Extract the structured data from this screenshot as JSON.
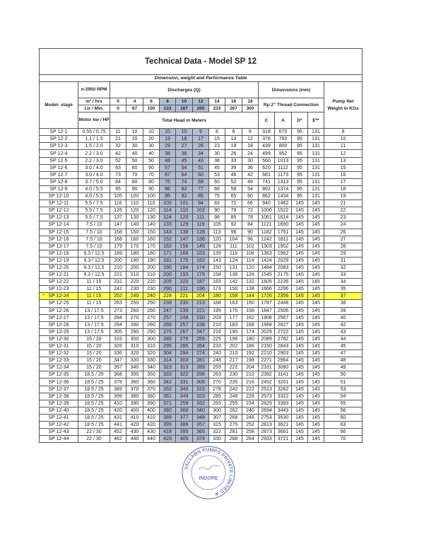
{
  "title": "Technical Data - Model SP 12",
  "subtitle": "Dimension, weight and Performance Table",
  "header": {
    "model_stage": "Model- stage",
    "rpm": "n-2950 RPM",
    "discharges": "Discharges (Q)",
    "dimensions": "Dimensions (mm)",
    "weight": "Pump Net Weight in KGs",
    "m3_label": "m³ / hrs",
    "m3_values": [
      "0",
      "4",
      "6",
      "8",
      "10",
      "12",
      "14",
      "16",
      "18"
    ],
    "ltr_label": "Ltr / Min.",
    "ltr_values": [
      "0",
      "67",
      "100",
      "133",
      "167",
      "200",
      "233",
      "267",
      "300"
    ],
    "thread": "Rp 2\" Thread Connection",
    "motor": "Motor kw / HP",
    "total_head": "Total Head in Meters",
    "dim_cols": [
      "C",
      "A",
      "D*",
      "E**"
    ]
  },
  "shaded_flow_columns": [
    "8",
    "10",
    "12"
  ],
  "colors": {
    "shade": "#b4bed3",
    "highlight": "#ffff3a"
  },
  "highlighted_row": "SP 12-24",
  "rows": [
    [
      "SP 12-1",
      "0.55 / 0.75",
      "11",
      "10",
      "10",
      "10",
      "10",
      "9",
      "8",
      "6",
      "6",
      "318",
      "670",
      "95",
      "131",
      "8"
    ],
    [
      "SP 12-2",
      "1.1 / 1.5",
      "21",
      "20",
      "20",
      "19",
      "18",
      "17",
      "15",
      "13",
      "12",
      "378",
      "760",
      "95",
      "131",
      "10"
    ],
    [
      "SP 12-3",
      "1.5 / 2.0",
      "32",
      "30",
      "30",
      "29",
      "27",
      "26",
      "23",
      "19",
      "18",
      "439",
      "800",
      "95",
      "131",
      "11"
    ],
    [
      "SP 12-4",
      "2.2 / 3.0",
      "42",
      "40",
      "40",
      "38",
      "36",
      "34",
      "30",
      "26",
      "24",
      "499",
      "952",
      "95",
      "131",
      "12"
    ],
    [
      "SP 12-5",
      "2.2 / 3.0",
      "52",
      "50",
      "50",
      "48",
      "45",
      "43",
      "38",
      "33",
      "30",
      "560",
      "1013",
      "95",
      "131",
      "13"
    ],
    [
      "SP 12-6",
      "3.0 / 4.0",
      "63",
      "60",
      "60",
      "57",
      "54",
      "51",
      "45",
      "39",
      "36",
      "620",
      "1112",
      "95",
      "131",
      "15"
    ],
    [
      "SP 12-7",
      "3.0 / 4.0",
      "73",
      "70",
      "70",
      "67",
      "64",
      "60",
      "53",
      "46",
      "42",
      "681",
      "1173",
      "95",
      "131",
      "16"
    ],
    [
      "SP 12-8",
      "3.7 / 5.0",
      "84",
      "80",
      "80",
      "76",
      "74",
      "69",
      "60",
      "52",
      "48",
      "741",
      "1313",
      "95",
      "131",
      "17"
    ],
    [
      "SP 12-9",
      "4.0 / 5.5",
      "95",
      "90",
      "90",
      "86",
      "83",
      "77",
      "68",
      "58",
      "54",
      "802",
      "1374",
      "95",
      "131",
      "18"
    ],
    [
      "SP 12-10",
      "4.0 / 5.5",
      "105",
      "100",
      "100",
      "95",
      "92",
      "85",
      "75",
      "65",
      "60",
      "862",
      "1434",
      "95",
      "131",
      "19"
    ],
    [
      "SP 12-11",
      "5.5 / 7.5",
      "116",
      "110",
      "110",
      "105",
      "101",
      "94",
      "83",
      "72",
      "66",
      "940",
      "1462",
      "145",
      "145",
      "21"
    ],
    [
      "SP 12-12",
      "5.5 / 7.5",
      "126",
      "120",
      "120",
      "114",
      "110",
      "102",
      "90",
      "78",
      "72",
      "1000",
      "1522",
      "145",
      "145",
      "22"
    ],
    [
      "SP 12-13",
      "5.5 / 7.5",
      "137",
      "130",
      "130",
      "124",
      "120",
      "111",
      "98",
      "85",
      "78",
      "1061",
      "1614",
      "145",
      "145",
      "23"
    ],
    [
      "SP 12-14",
      "7.5 / 10",
      "147",
      "140",
      "140",
      "133",
      "129",
      "119",
      "105",
      "92",
      "84",
      "1121",
      "1690",
      "145",
      "145",
      "24"
    ],
    [
      "SP 12-15",
      "7.5 / 10",
      "158",
      "150",
      "150",
      "143",
      "138",
      "128",
      "113",
      "98",
      "90",
      "1182",
      "1751",
      "145",
      "145",
      "26"
    ],
    [
      "SP 12-16",
      "7.5 / 10",
      "168",
      "160",
      "160",
      "152",
      "147",
      "136",
      "120",
      "104",
      "96",
      "1242",
      "1811",
      "145",
      "145",
      "27"
    ],
    [
      "SP 12-17",
      "7.5 / 10",
      "179",
      "170",
      "170",
      "162",
      "156",
      "145",
      "128",
      "111",
      "102",
      "1303",
      "1902",
      "145",
      "145",
      "28"
    ],
    [
      "SP 12-18",
      "9.3 / 12.5",
      "189",
      "180",
      "180",
      "171",
      "166",
      "153",
      "135",
      "118",
      "108",
      "1363",
      "1962",
      "145",
      "145",
      "29"
    ],
    [
      "SP 12-19",
      "9.3 / 12.5",
      "200",
      "190",
      "190",
      "181",
      "175",
      "162",
      "143",
      "124",
      "114",
      "1424",
      "2029",
      "145",
      "145",
      "31"
    ],
    [
      "SP 12-20",
      "9.3 / 12.5",
      "210",
      "200",
      "200",
      "190",
      "184",
      "174",
      "150",
      "131",
      "120",
      "1484",
      "2083",
      "145",
      "145",
      "32"
    ],
    [
      "SP 12-21",
      "9.3 / 12.5",
      "221",
      "210",
      "210",
      "200",
      "193",
      "179",
      "158",
      "136",
      "126",
      "1545",
      "2175",
      "145",
      "145",
      "33"
    ],
    [
      "SP 12-22",
      "11 / 15",
      "231",
      "220",
      "220",
      "209",
      "220",
      "187",
      "165",
      "142",
      "132",
      "1605",
      "2235",
      "145",
      "145",
      "34"
    ],
    [
      "SP 12-23",
      "11 / 15",
      "242",
      "230",
      "230",
      "290",
      "211",
      "196",
      "173",
      "150",
      "138",
      "1666",
      "2296",
      "145",
      "145",
      "35"
    ],
    [
      "SP 12-24",
      "11 / 15",
      "252",
      "240",
      "240",
      "228",
      "221",
      "204",
      "180",
      "158",
      "144",
      "1726",
      "2356",
      "145",
      "145",
      "37"
    ],
    [
      "SP 12-25",
      "11 / 15",
      "263",
      "250",
      "250",
      "238",
      "230",
      "213",
      "188",
      "163",
      "150",
      "1787",
      "2448",
      "145",
      "145",
      "38"
    ],
    [
      "SP 12-26",
      "13 / 17.5",
      "273",
      "260",
      "260",
      "247",
      "239",
      "221",
      "195",
      "170",
      "156",
      "1847",
      "2506",
      "145",
      "145",
      "39"
    ],
    [
      "SP 12-27",
      "13 / 17.5",
      "284",
      "270",
      "270",
      "257",
      "248",
      "230",
      "203",
      "177",
      "162",
      "1908",
      "2567",
      "145",
      "145",
      "40"
    ],
    [
      "SP 12-28",
      "13 / 17.5",
      "294",
      "280",
      "280",
      "266",
      "257",
      "238",
      "210",
      "183",
      "168",
      "1968",
      "2627",
      "145",
      "145",
      "42"
    ],
    [
      "SP 12-29",
      "13 / 17.5",
      "305",
      "290",
      "290",
      "276",
      "267",
      "347",
      "216",
      "190",
      "174",
      "2029",
      "2722",
      "145",
      "145",
      "43"
    ],
    [
      "SP 12-30",
      "15 / 20",
      "315",
      "300",
      "300",
      "285",
      "276",
      "255",
      "225",
      "196",
      "180",
      "2089",
      "2782",
      "145",
      "145",
      "44"
    ],
    [
      "SP 12-31",
      "15 / 20",
      "326",
      "310",
      "310",
      "295",
      "285",
      "264",
      "233",
      "202",
      "186",
      "2150",
      "2843",
      "145",
      "145",
      "45"
    ],
    [
      "SP 12-32",
      "15 / 20",
      "336",
      "320",
      "320",
      "304",
      "294",
      "274",
      "240",
      "210",
      "192",
      "2210",
      "2903",
      "145",
      "145",
      "47"
    ],
    [
      "SP 12-33",
      "15 / 20",
      "347",
      "330",
      "330",
      "314",
      "303",
      "281",
      "248",
      "217",
      "198",
      "2271",
      "2964",
      "145",
      "145",
      "48"
    ],
    [
      "SP 12-34",
      "15 / 20",
      "357",
      "340",
      "340",
      "323",
      "313",
      "289",
      "255",
      "222",
      "204",
      "2331",
      "3080",
      "145",
      "145",
      "49"
    ],
    [
      "SP 12-35",
      "18.5 / 25",
      "368",
      "350",
      "350",
      "333",
      "322",
      "298",
      "263",
      "230",
      "210",
      "2392",
      "3141",
      "145",
      "145",
      "50"
    ],
    [
      "SP 12-36",
      "18.5 / 25",
      "378",
      "360",
      "360",
      "342",
      "331",
      "306",
      "270",
      "235",
      "216",
      "2452",
      "3201",
      "145",
      "145",
      "51"
    ],
    [
      "SP 12-37",
      "18.5 / 25",
      "389",
      "370",
      "370",
      "352",
      "340",
      "315",
      "278",
      "242",
      "222",
      "2513",
      "3262",
      "145",
      "145",
      "53"
    ],
    [
      "SP 12-38",
      "18.5 / 25",
      "399",
      "380",
      "380",
      "361",
      "349",
      "323",
      "285",
      "248",
      "228",
      "2573",
      "3322",
      "145",
      "145",
      "54"
    ],
    [
      "SP 12-39",
      "18.5 / 25",
      "410",
      "390",
      "390",
      "371",
      "259",
      "332",
      "293",
      "255",
      "234",
      "2629",
      "3383",
      "145",
      "145",
      "55"
    ],
    [
      "SP 12-40",
      "18.5 / 25",
      "420",
      "400",
      "400",
      "380",
      "368",
      "340",
      "300",
      "262",
      "240",
      "2694",
      "3443",
      "145",
      "145",
      "56"
    ],
    [
      "SP 12-41",
      "18.5 / 25",
      "431",
      "410",
      "410",
      "389",
      "377",
      "348",
      "307",
      "268",
      "246",
      "2753",
      "3530",
      "145",
      "145",
      "60"
    ],
    [
      "SP 12-42",
      "18.5 / 25",
      "441",
      "420",
      "420",
      "399",
      "386",
      "357",
      "315",
      "275",
      "252",
      "2813",
      "3621",
      "145",
      "145",
      "63"
    ],
    [
      "SP 12-43",
      "22 / 30",
      "452",
      "430",
      "430",
      "418",
      "395",
      "365",
      "322",
      "281",
      "258",
      "2873",
      "3661",
      "145",
      "145",
      "66"
    ],
    [
      "SP 12-44",
      "22 / 30",
      "462",
      "440",
      "440",
      "429",
      "405",
      "374",
      "330",
      "288",
      "264",
      "2933",
      "3721",
      "145",
      "145",
      "70"
    ]
  ],
  "stamp": {
    "text": "VALLABH PUMPS PRIVATE LIMITED",
    "city": "INDORE"
  }
}
